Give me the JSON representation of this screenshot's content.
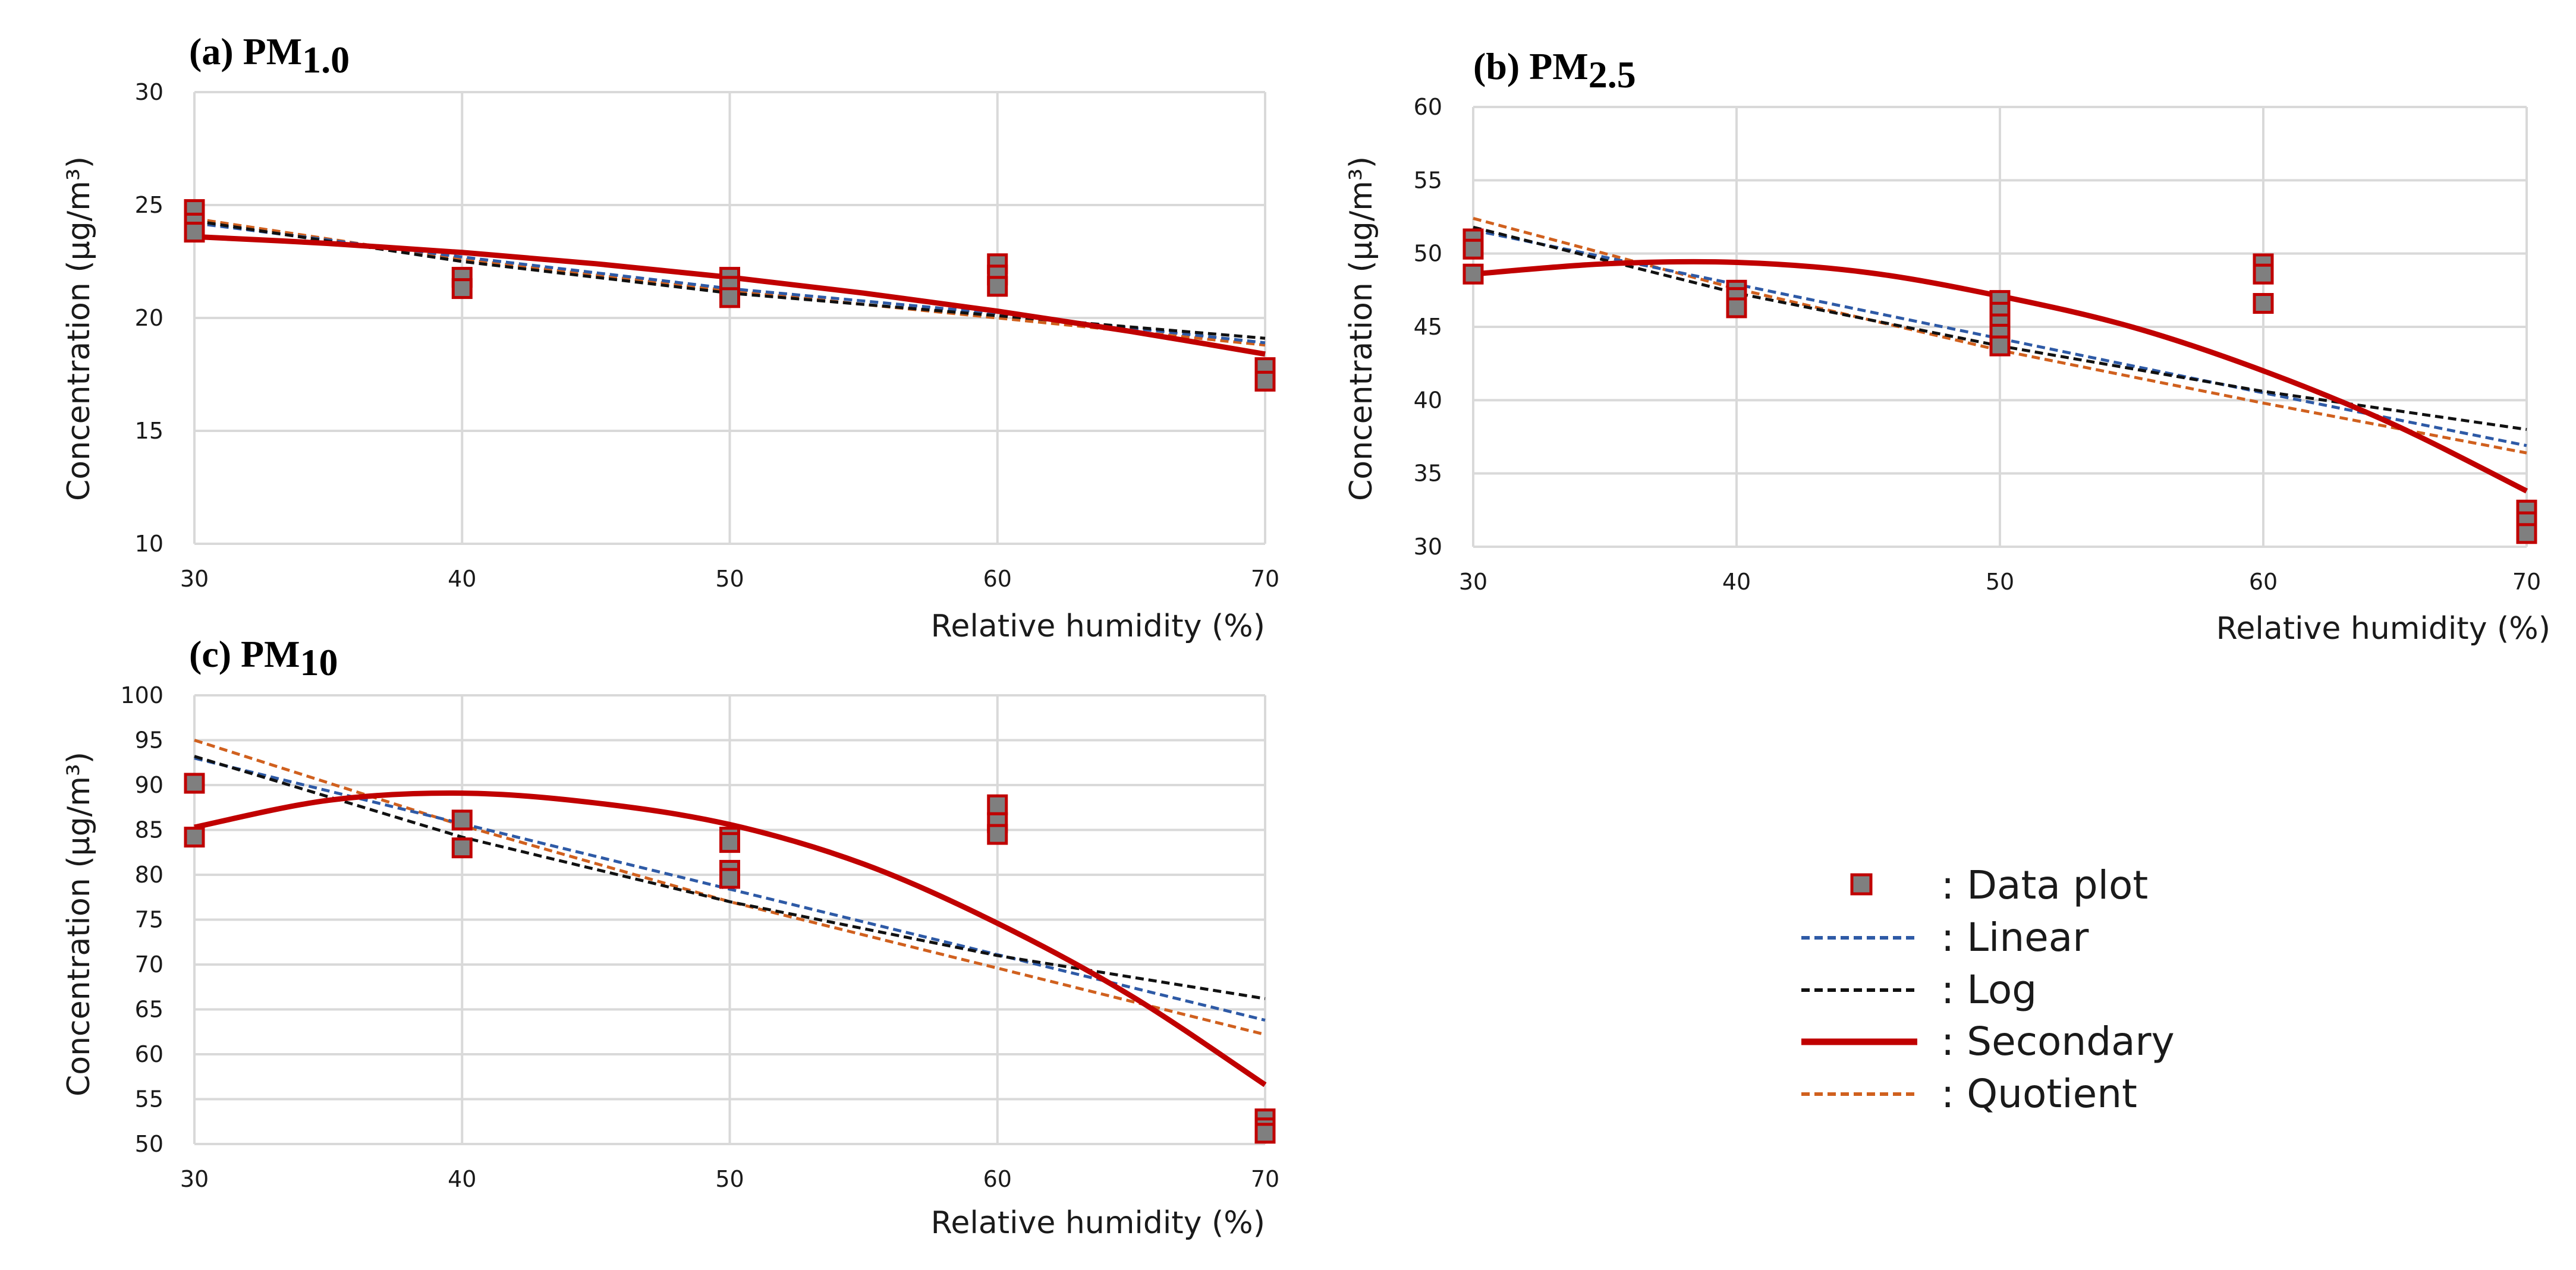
{
  "colors": {
    "linear": "#2e5aa6",
    "log": "#111111",
    "secondary": "#c00000",
    "quotient": "#d0601e",
    "marker_fill": "#7f7f7f",
    "marker_edge": "#c00000",
    "grid": "#d9d9d9"
  },
  "legend": {
    "items": [
      {
        "key": "data",
        "label": ": Data plot",
        "icon": "square-marker-icon"
      },
      {
        "key": "linear",
        "label": ": Linear",
        "icon": "dashed-line-icon"
      },
      {
        "key": "log",
        "label": ": Log",
        "icon": "dashed-line-icon"
      },
      {
        "key": "secondary",
        "label": ": Secondary",
        "icon": "solid-line-icon"
      },
      {
        "key": "quotient",
        "label": ": Quotient",
        "icon": "dashed-line-icon"
      }
    ]
  },
  "chart_data": [
    {
      "id": "a",
      "type": "scatter",
      "title_main": "(a) PM",
      "title_sub": "1.0",
      "xlabel": "Relative humidity (%)",
      "ylabel": "Concentration (μg/m³)",
      "xlim": [
        30,
        70
      ],
      "ylim": [
        10,
        30
      ],
      "xticks": [
        30,
        40,
        50,
        60,
        70
      ],
      "yticks": [
        10,
        15,
        20,
        25,
        30
      ],
      "points": {
        "x": [
          30,
          30,
          30,
          40,
          40,
          50,
          50,
          50,
          60,
          60,
          60,
          70,
          70
        ],
        "y": [
          24.8,
          24.2,
          23.8,
          21.8,
          21.3,
          21.8,
          21.4,
          20.9,
          22.4,
          21.9,
          21.4,
          17.8,
          17.2
        ]
      },
      "fits": {
        "linear": {
          "x": [
            30,
            40,
            50,
            60,
            70
          ],
          "y": [
            24.2,
            22.7,
            21.3,
            20.2,
            18.9
          ]
        },
        "log": {
          "x": [
            30,
            40,
            50,
            60,
            70
          ],
          "y": [
            24.3,
            22.5,
            21.1,
            20.1,
            19.1
          ]
        },
        "secondary": {
          "x": [
            30,
            35,
            40,
            45,
            50,
            55,
            60,
            65,
            70
          ],
          "y": [
            23.6,
            23.3,
            22.9,
            22.4,
            21.8,
            21.1,
            20.3,
            19.4,
            18.4
          ]
        },
        "quotient": {
          "x": [
            30,
            40,
            50,
            60,
            70
          ],
          "y": [
            24.4,
            22.6,
            21.2,
            20.0,
            18.8
          ]
        }
      }
    },
    {
      "id": "b",
      "type": "scatter",
      "title_main": "(b) PM",
      "title_sub": "2.5",
      "xlabel": "Relative humidity (%)",
      "ylabel": "Concentration (μg/m³)",
      "xlim": [
        30,
        70
      ],
      "ylim": [
        30,
        60
      ],
      "xticks": [
        30,
        40,
        50,
        60,
        70
      ],
      "yticks": [
        30,
        35,
        40,
        45,
        50,
        55,
        60
      ],
      "points": {
        "x": [
          30,
          30,
          30,
          40,
          40,
          40,
          50,
          50,
          50,
          50,
          50,
          60,
          60,
          60,
          70,
          70,
          70
        ],
        "y": [
          51.0,
          50.3,
          48.6,
          47.5,
          47.0,
          46.3,
          46.8,
          46.0,
          45.2,
          44.5,
          43.7,
          49.3,
          48.6,
          46.6,
          32.5,
          31.7,
          30.9
        ]
      },
      "fits": {
        "linear": {
          "x": [
            30,
            40,
            50,
            60,
            70
          ],
          "y": [
            51.6,
            47.9,
            44.2,
            40.5,
            36.9
          ]
        },
        "log": {
          "x": [
            30,
            40,
            50,
            60,
            70
          ],
          "y": [
            51.8,
            47.3,
            43.7,
            40.6,
            38.0
          ]
        },
        "secondary": {
          "x": [
            30,
            35,
            40,
            45,
            50,
            55,
            60,
            65,
            70
          ],
          "y": [
            48.6,
            49.3,
            49.4,
            48.7,
            47.1,
            45.0,
            42.0,
            38.3,
            33.8
          ]
        },
        "quotient": {
          "x": [
            30,
            40,
            50,
            60,
            70
          ],
          "y": [
            52.4,
            47.6,
            43.4,
            39.8,
            36.4
          ]
        }
      }
    },
    {
      "id": "c",
      "type": "scatter",
      "title_main": "(c) PM",
      "title_sub": "10",
      "xlabel": "Relative humidity (%)",
      "ylabel": "Concentration (μg/m³)",
      "xlim": [
        30,
        70
      ],
      "ylim": [
        50,
        100
      ],
      "xticks": [
        30,
        40,
        50,
        60,
        70
      ],
      "yticks": [
        50,
        55,
        60,
        65,
        70,
        75,
        80,
        85,
        90,
        95,
        100
      ],
      "points": {
        "x": [
          30,
          30,
          40,
          40,
          50,
          50,
          50,
          50,
          60,
          60,
          60,
          70,
          70,
          70
        ],
        "y": [
          90.2,
          84.2,
          86.1,
          83.0,
          84.2,
          80.5,
          79.6,
          83.6,
          87.8,
          85.8,
          84.5,
          52.8,
          51.8,
          51.2
        ]
      },
      "fits": {
        "linear": {
          "x": [
            30,
            40,
            50,
            60,
            70
          ],
          "y": [
            93.0,
            85.7,
            78.4,
            71.1,
            63.8
          ]
        },
        "log": {
          "x": [
            30,
            40,
            50,
            60,
            70
          ],
          "y": [
            93.2,
            84.2,
            77.0,
            71.0,
            66.2
          ]
        },
        "secondary": {
          "x": [
            30,
            35,
            40,
            45,
            50,
            55,
            60,
            65,
            70
          ],
          "y": [
            85.3,
            88.3,
            89.1,
            88.0,
            85.6,
            81.2,
            74.6,
            66.5,
            56.6
          ]
        },
        "quotient": {
          "x": [
            30,
            40,
            50,
            60,
            70
          ],
          "y": [
            95.0,
            85.5,
            77.0,
            69.6,
            62.2
          ]
        }
      }
    }
  ]
}
